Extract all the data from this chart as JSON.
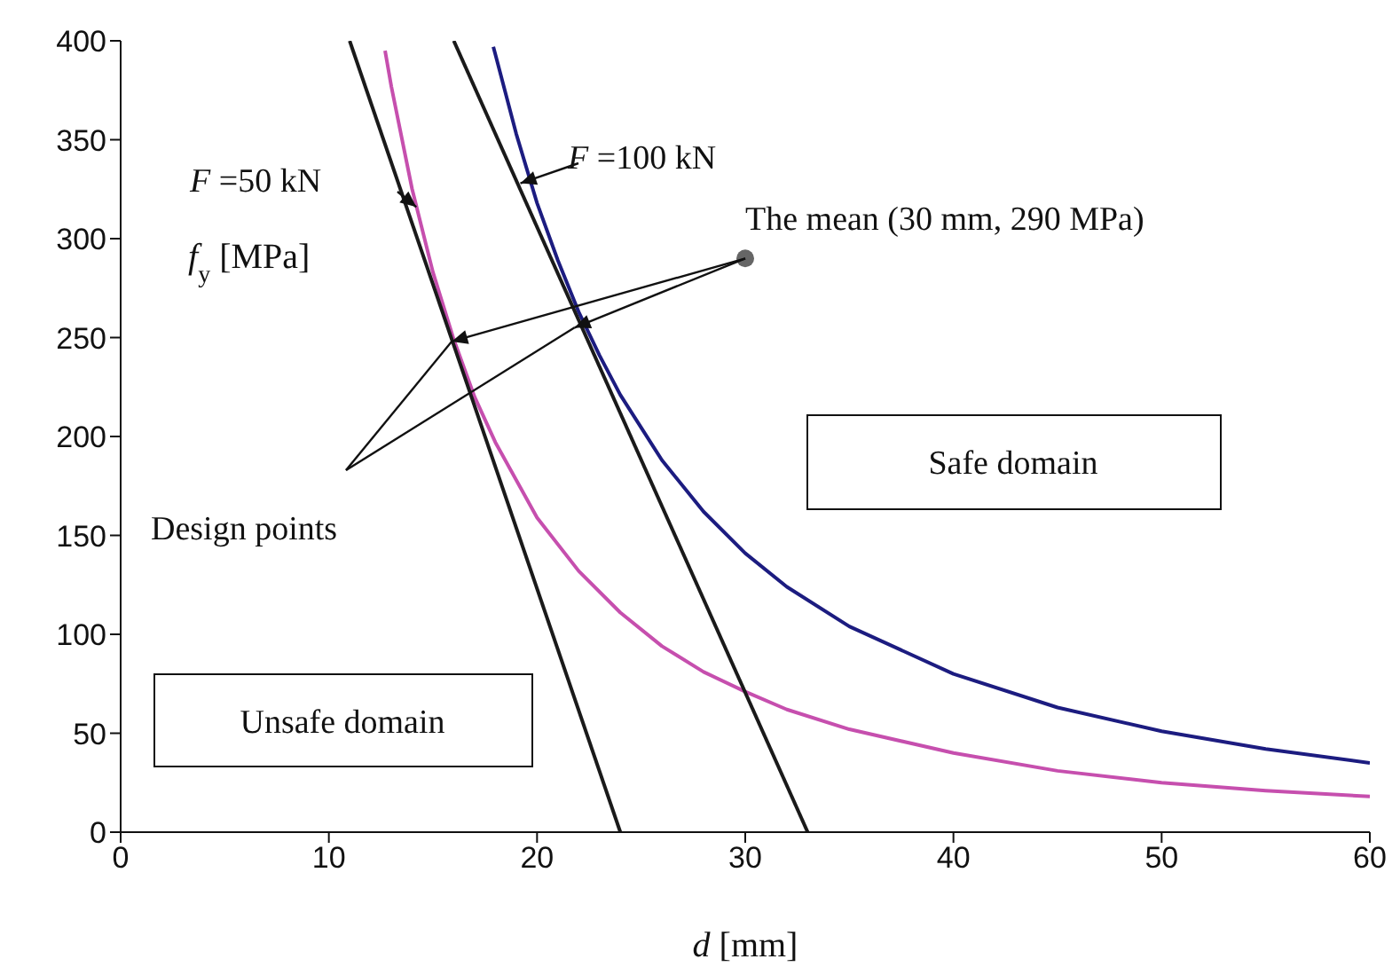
{
  "chart_data": {
    "type": "line",
    "xlabel": "d [mm]",
    "ylabel": "f$_{y}$ [MPa]",
    "xlim": [
      0,
      60
    ],
    "ylim": [
      0,
      400
    ],
    "xticks": [
      0,
      10,
      20,
      30,
      40,
      50,
      60
    ],
    "yticks": [
      0,
      50,
      100,
      150,
      200,
      250,
      300,
      350,
      400
    ],
    "marker": "none",
    "series": [
      {
        "name": "F =50 kN",
        "color": "#c64fae",
        "x": [
          12.7,
          13,
          14,
          15,
          16,
          17,
          18,
          20,
          22,
          24,
          26,
          28,
          30,
          32,
          35,
          40,
          45,
          50,
          55,
          60
        ],
        "values": [
          395,
          377,
          325,
          283,
          249,
          220,
          197,
          159,
          132,
          111,
          94,
          81,
          71,
          62,
          52,
          40,
          31,
          25,
          21,
          18
        ]
      },
      {
        "name": "F =100 kN",
        "color": "#1c1c80",
        "x": [
          17.9,
          18,
          19,
          20,
          21,
          22,
          23,
          24,
          26,
          28,
          30,
          32,
          35,
          40,
          45,
          50,
          55,
          60
        ],
        "values": [
          397,
          393,
          353,
          318,
          289,
          263,
          241,
          221,
          188,
          162,
          141,
          124,
          104,
          80,
          63,
          51,
          42,
          35
        ]
      },
      {
        "color": "#1a1a1a",
        "x": [
          11,
          24
        ],
        "values": [
          400,
          0
        ]
      },
      {
        "color": "#1a1a1a",
        "x": [
          16,
          33
        ],
        "values": [
          400,
          0
        ]
      },
      {
        "type": "scatter",
        "marker": "circle",
        "color": "#666666",
        "x": [
          30
        ],
        "values": [
          290
        ]
      }
    ],
    "annotations": [
      {
        "text": "Design points",
        "x": 15.9,
        "y": 248
      },
      "Safe domain",
      "Unsafe domain",
      {
        "text": "The mean (30 mm, 290 MPa)",
        "x": 30,
        "y": 290
      }
    ]
  }
}
